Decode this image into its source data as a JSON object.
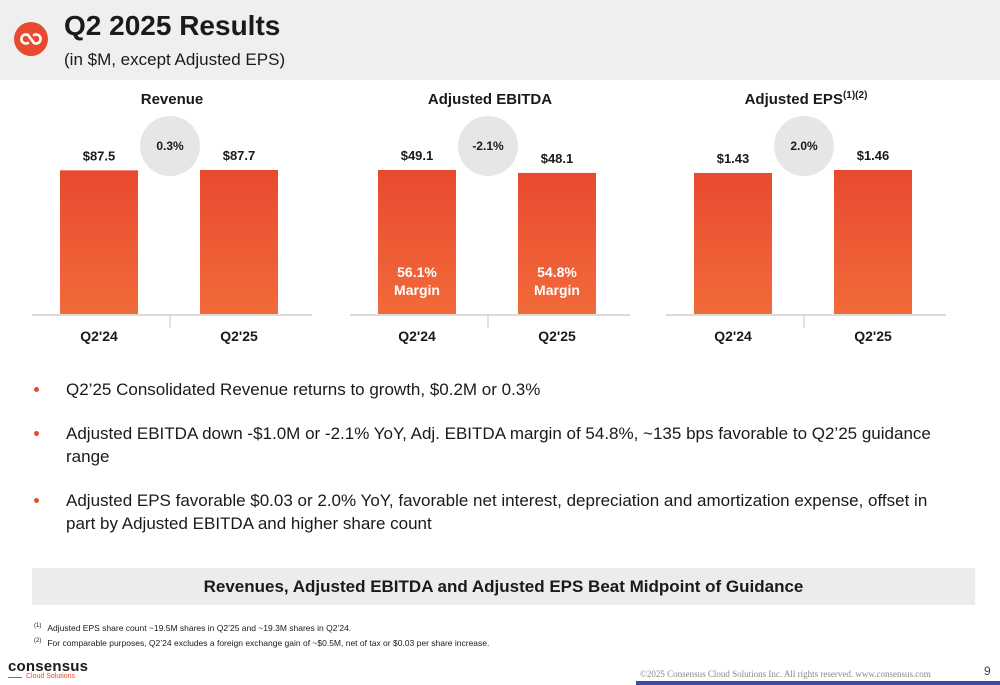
{
  "header": {
    "title": "Q2 2025 Results",
    "subtitle": "(in $M, except Adjusted EPS)"
  },
  "colors": {
    "bar": "#e84a2f",
    "bar_gradient_bottom": "#f26a3a",
    "accent": "#e84a2f",
    "bubble": "#e6e6e6"
  },
  "chart_data": [
    {
      "type": "bar",
      "title": "Revenue",
      "title_sup": "",
      "categories": [
        "Q2'24",
        "Q2'25"
      ],
      "values": [
        87.5,
        87.7
      ],
      "value_labels": [
        "$87.5",
        "$87.7"
      ],
      "change_label": "0.3%",
      "inner_labels": []
    },
    {
      "type": "bar",
      "title": "Adjusted EBITDA",
      "title_sup": "",
      "categories": [
        "Q2'24",
        "Q2'25"
      ],
      "values": [
        49.1,
        48.1
      ],
      "value_labels": [
        "$49.1",
        "$48.1"
      ],
      "change_label": "-2.1%",
      "inner_labels": [
        [
          "56.1%",
          "Margin"
        ],
        [
          "54.8%",
          "Margin"
        ]
      ]
    },
    {
      "type": "bar",
      "title": "Adjusted EPS",
      "title_sup": "(1)(2)",
      "categories": [
        "Q2'24",
        "Q2'25"
      ],
      "values": [
        1.43,
        1.46
      ],
      "value_labels": [
        "$1.43",
        "$1.46"
      ],
      "change_label": "2.0%",
      "inner_labels": []
    }
  ],
  "bullets": [
    "Q2’25 Consolidated Revenue returns to growth, $0.2M or 0.3%",
    "Adjusted EBITDA down -$1.0M or -2.1% YoY, Adj. EBITDA margin of 54.8%, ~135 bps favorable to Q2’25 guidance range",
    "Adjusted EPS favorable $0.03 or 2.0% YoY, favorable net interest, depreciation and amortization expense, offset in part by Adjusted EBITDA and higher share count"
  ],
  "banner": "Revenues, Adjusted EBITDA and Adjusted EPS Beat Midpoint of Guidance",
  "footnotes": [
    {
      "mark": "(1)",
      "text": "Adjusted EPS share count ~19.5M shares in Q2’25 and ~19.3M shares in Q2’24."
    },
    {
      "mark": "(2)",
      "text": "For comparable purposes, Q2’24 excludes a foreign exchange gain of ~$0.5M, net of tax or $0.03 per share increase."
    }
  ],
  "footer": {
    "brand_name": "consensus",
    "brand_sub": "Cloud Solutions",
    "copyright": "©2025 Consensus Cloud Solutions Inc. All rights reserved. www.consensus.com",
    "page_number": "9"
  }
}
